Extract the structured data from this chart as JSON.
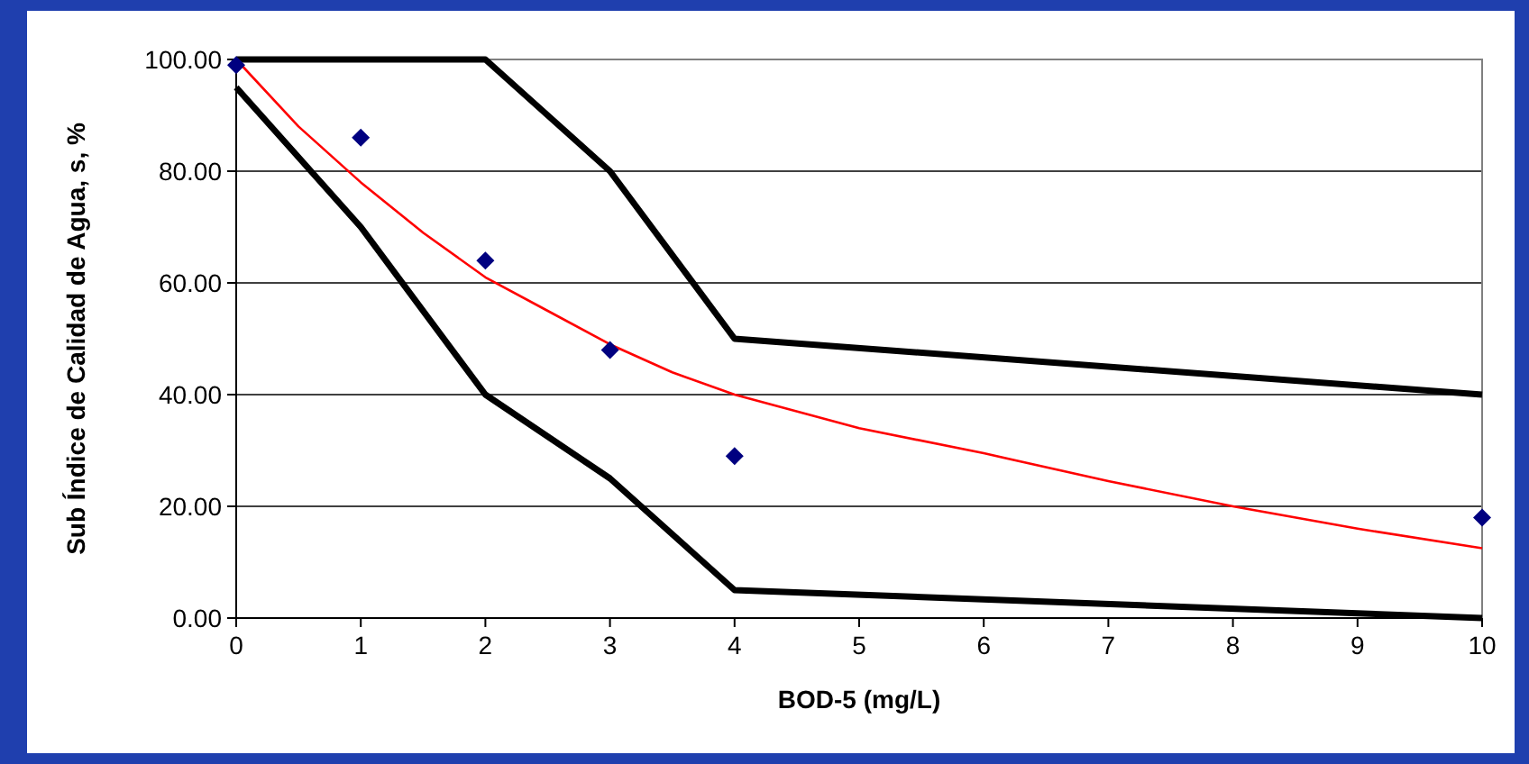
{
  "chart_data": {
    "type": "line",
    "xlabel": "BOD-5 (mg/L)",
    "ylabel": "Sub Índice de Calidad de Agua, s, %",
    "xlim": [
      0,
      10
    ],
    "xticks": [
      0,
      1,
      2,
      3,
      4,
      5,
      6,
      7,
      8,
      9,
      10
    ],
    "ylim": [
      0,
      100
    ],
    "yticks": [
      {
        "value": 0,
        "label": "0.00"
      },
      {
        "value": 20,
        "label": "20.00"
      },
      {
        "value": 40,
        "label": "40.00"
      },
      {
        "value": 60,
        "label": "60.00"
      },
      {
        "value": 80,
        "label": "80.00"
      },
      {
        "value": 100,
        "label": "100.00"
      }
    ],
    "grid": "y",
    "series": [
      {
        "color": "#000000",
        "x": [
          0,
          2,
          3,
          4,
          10
        ],
        "values": [
          100,
          100,
          80,
          50,
          40
        ]
      },
      {
        "color": "#000000",
        "x": [
          0,
          1,
          2,
          3,
          4,
          10
        ],
        "values": [
          95,
          70,
          40,
          25,
          5,
          0
        ]
      },
      {
        "color": "#ff0000",
        "x": [
          0,
          0.5,
          1,
          1.5,
          2,
          2.5,
          3,
          3.5,
          4,
          5,
          6,
          7,
          8,
          9,
          10
        ],
        "values": [
          100,
          88,
          78,
          69,
          61,
          55,
          49,
          44,
          40,
          34,
          29.5,
          24.5,
          20,
          16,
          12.5
        ]
      },
      {
        "type": "scatter",
        "color": "#000080",
        "marker": "diamond",
        "x": [
          0,
          1,
          2,
          3,
          4,
          10
        ],
        "values": [
          99,
          86,
          64,
          48,
          29,
          18
        ]
      }
    ]
  }
}
